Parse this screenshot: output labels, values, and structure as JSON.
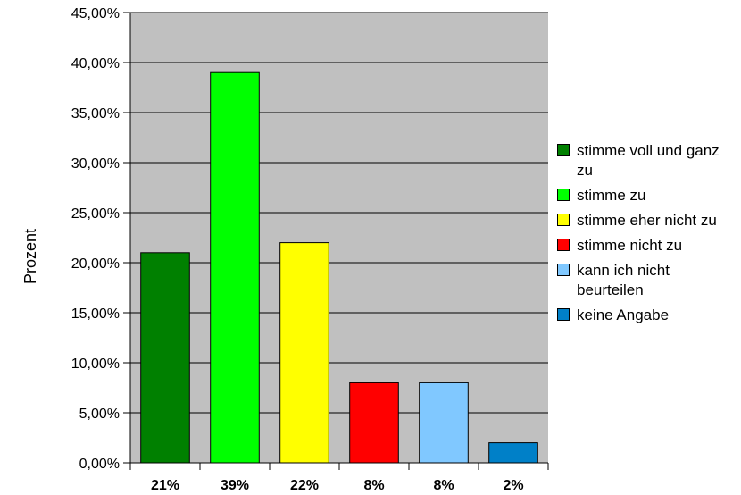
{
  "chart_data": {
    "type": "bar",
    "title": "",
    "xlabel": "",
    "ylabel": "Prozent",
    "ylim": [
      0,
      45
    ],
    "yticks": [
      "0,00%",
      "5,00%",
      "10,00%",
      "15,00%",
      "20,00%",
      "25,00%",
      "30,00%",
      "35,00%",
      "40,00%",
      "45,00%"
    ],
    "categories": [
      "21%",
      "39%",
      "22%",
      "8%",
      "8%",
      "2%"
    ],
    "series_labels": [
      "stimme voll und ganz zu",
      "stimme zu",
      "stimme eher nicht zu",
      "stimme nicht zu",
      "kann ich nicht beurteilen",
      "keine Angabe"
    ],
    "values": [
      21,
      39,
      22,
      8,
      8,
      2
    ],
    "colors": [
      "#008000",
      "#00ff00",
      "#ffff00",
      "#ff0000",
      "#80c8ff",
      "#0080c8"
    ],
    "plot_background": "#c0c0c0",
    "grid": true,
    "legend_position": "right"
  }
}
